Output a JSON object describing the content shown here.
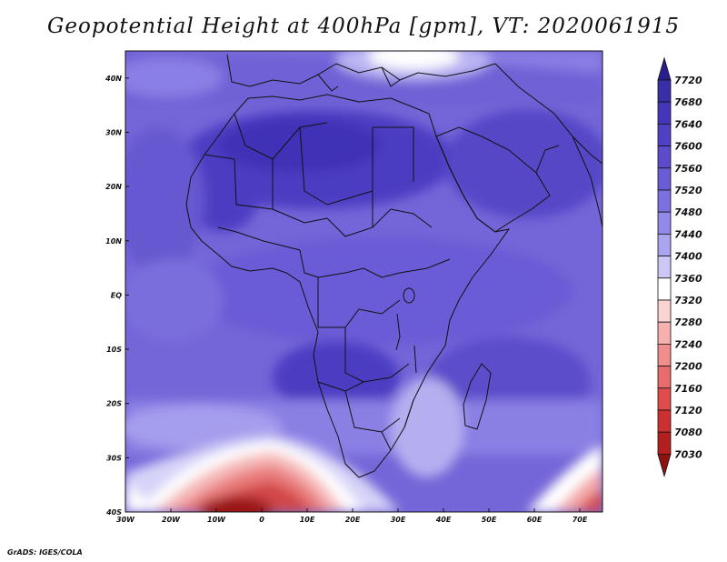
{
  "title": "Geopotential Height at 400hPa [gpm], VT: 2020061915",
  "credit": "GrADS: IGES/COLA",
  "lat_labels": [
    "40N",
    "30N",
    "20N",
    "10N",
    "EQ",
    "10S",
    "20S",
    "30S",
    "40S"
  ],
  "lon_labels": [
    "30W",
    "20W",
    "10W",
    "0",
    "10E",
    "20E",
    "30E",
    "40E",
    "50E",
    "60E",
    "70E"
  ],
  "map_extent": {
    "lon_min": -30,
    "lon_max": 75,
    "lat_min": -40,
    "lat_max": 45
  },
  "colorbar": {
    "levels": [
      "7720",
      "7680",
      "7640",
      "7600",
      "7560",
      "7520",
      "7480",
      "7440",
      "7400",
      "7360",
      "7320",
      "7280",
      "7240",
      "7200",
      "7160",
      "7120",
      "7080",
      "7030"
    ],
    "colors": [
      "#2a1e8f",
      "#3a2da8",
      "#4535b9",
      "#5040c4",
      "#5c4ccd",
      "#6a5cd6",
      "#7c70df",
      "#9389e8",
      "#aba4f0",
      "#cbc7f7",
      "#ffffff",
      "#fbd3d3",
      "#f6b0b0",
      "#f08e8e",
      "#e96c6c",
      "#e04c4c",
      "#cc3030",
      "#b31e1e",
      "#8f1212"
    ]
  }
}
